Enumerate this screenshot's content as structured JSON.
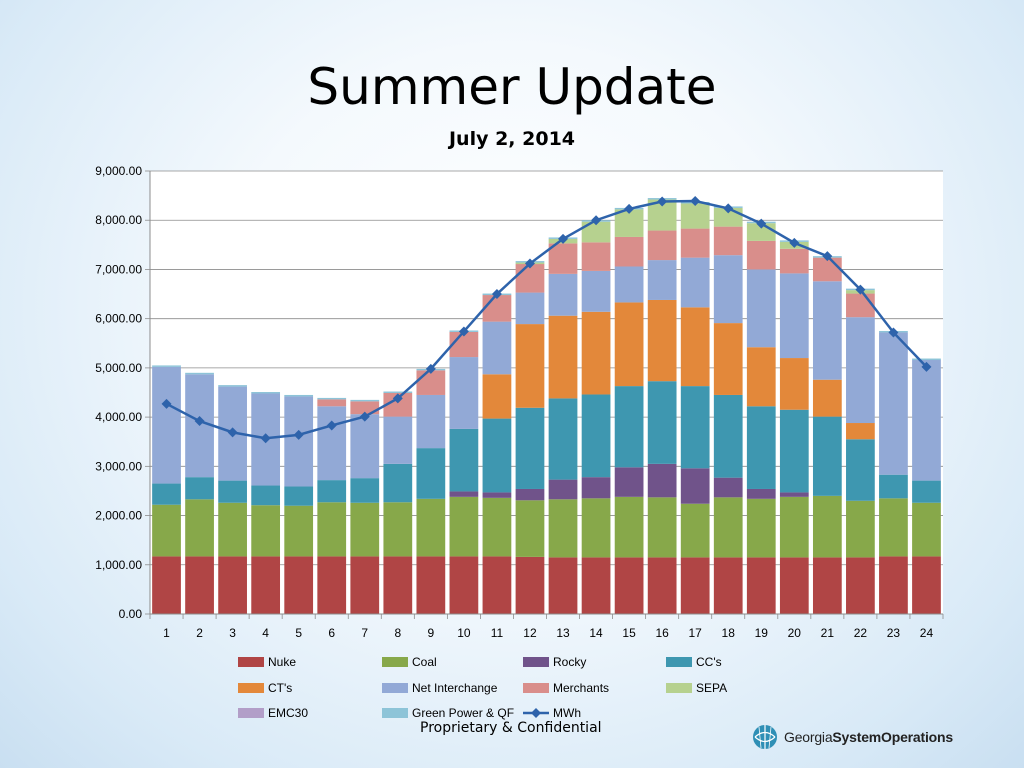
{
  "slide": {
    "title": "Summer Update",
    "subtitle": "July 2, 2014",
    "footer": "Proprietary & Confidential",
    "logo": {
      "prefix": "Georgia",
      "bold": "SystemOperations",
      "icon": "globe-icon"
    }
  },
  "chart_data": {
    "type": "bar",
    "stacked": true,
    "title": "",
    "xlabel": "",
    "ylabel": "",
    "categories": [
      "1",
      "2",
      "3",
      "4",
      "5",
      "6",
      "7",
      "8",
      "9",
      "10",
      "11",
      "12",
      "13",
      "14",
      "15",
      "16",
      "17",
      "18",
      "19",
      "20",
      "21",
      "22",
      "23",
      "24"
    ],
    "ylim": [
      0,
      9000
    ],
    "yticks": [
      "0.00",
      "1,000.00",
      "2,000.00",
      "3,000.00",
      "4,000.00",
      "5,000.00",
      "6,000.00",
      "7,000.00",
      "8,000.00",
      "9,000.00"
    ],
    "grid": true,
    "legend_position": "bottom",
    "series": [
      {
        "name": "Nuke",
        "color": "#b04545",
        "values": [
          1170,
          1170,
          1170,
          1170,
          1170,
          1170,
          1170,
          1170,
          1170,
          1170,
          1170,
          1160,
          1150,
          1150,
          1150,
          1150,
          1150,
          1150,
          1150,
          1150,
          1150,
          1150,
          1170,
          1170
        ]
      },
      {
        "name": "Coal",
        "color": "#87a84a",
        "values": [
          1050,
          1160,
          1090,
          1040,
          1030,
          1100,
          1090,
          1100,
          1170,
          1210,
          1190,
          1150,
          1180,
          1200,
          1230,
          1220,
          1090,
          1220,
          1190,
          1230,
          1250,
          1150,
          1180,
          1090
        ]
      },
      {
        "name": "Rocky",
        "color": "#70538a",
        "values": [
          0,
          0,
          0,
          0,
          0,
          0,
          0,
          0,
          0,
          110,
          110,
          230,
          400,
          430,
          600,
          680,
          720,
          400,
          200,
          90,
          0,
          0,
          0,
          0
        ]
      },
      {
        "name": "CC's",
        "color": "#3e97b0",
        "values": [
          430,
          450,
          450,
          400,
          390,
          450,
          500,
          780,
          1030,
          1270,
          1500,
          1650,
          1650,
          1680,
          1650,
          1680,
          1670,
          1680,
          1680,
          1680,
          1610,
          1250,
          480,
          450
        ]
      },
      {
        "name": "CT's",
        "color": "#e3883a",
        "values": [
          0,
          0,
          0,
          0,
          0,
          0,
          0,
          0,
          0,
          0,
          900,
          1700,
          1680,
          1680,
          1700,
          1650,
          1600,
          1460,
          1200,
          1050,
          750,
          330,
          0,
          0
        ]
      },
      {
        "name": "Net Interchange",
        "color": "#92a9d6",
        "values": [
          2370,
          2090,
          1910,
          1870,
          1830,
          1500,
          1300,
          960,
          1080,
          1460,
          1070,
          640,
          850,
          830,
          730,
          810,
          1010,
          1380,
          1580,
          1720,
          2000,
          2150,
          2890,
          2450
        ]
      },
      {
        "name": "Merchants",
        "color": "#d98e8b",
        "values": [
          0,
          0,
          0,
          0,
          0,
          140,
          260,
          480,
          500,
          510,
          540,
          580,
          620,
          580,
          600,
          600,
          590,
          580,
          580,
          500,
          480,
          480,
          0,
          0
        ]
      },
      {
        "name": "SEPA",
        "color": "#b6d18f",
        "values": [
          0,
          0,
          0,
          0,
          0,
          0,
          0,
          0,
          0,
          0,
          0,
          30,
          90,
          420,
          560,
          630,
          510,
          380,
          360,
          140,
          0,
          70,
          0,
          0
        ]
      },
      {
        "name": "EMC30",
        "color": "#b29ec8",
        "values": [
          0,
          0,
          0,
          0,
          0,
          0,
          0,
          0,
          0,
          0,
          0,
          0,
          0,
          0,
          0,
          0,
          0,
          0,
          0,
          0,
          0,
          0,
          0,
          0
        ]
      },
      {
        "name": "Green Power & QF",
        "color": "#8dc4d8",
        "values": [
          30,
          30,
          30,
          30,
          30,
          30,
          30,
          30,
          30,
          30,
          30,
          30,
          30,
          30,
          30,
          30,
          30,
          30,
          30,
          30,
          30,
          30,
          30,
          30
        ]
      }
    ],
    "line": {
      "name": "MWh",
      "color": "#2e63ab",
      "values": [
        4270,
        3920,
        3690,
        3570,
        3640,
        3830,
        4010,
        4380,
        4980,
        5740,
        6500,
        7120,
        7620,
        8000,
        8230,
        8380,
        8390,
        8240,
        7930,
        7540,
        7270,
        6590,
        5720,
        5020
      ]
    }
  }
}
